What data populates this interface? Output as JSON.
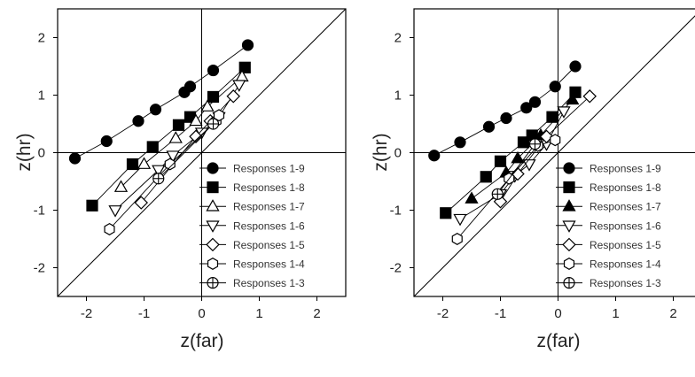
{
  "chart_data": [
    {
      "type": "scatter",
      "xlabel": "z(far)",
      "ylabel": "z(hr)",
      "xlim": [
        -2.5,
        2.5
      ],
      "ylim": [
        -2.5,
        2.5
      ],
      "xticks": [
        -2,
        -1,
        0,
        1,
        2
      ],
      "yticks": [
        -2,
        -1,
        0,
        1,
        2
      ],
      "reference_lines": [
        "x=0",
        "y=0",
        "y=x"
      ],
      "legend_position": "bottom-right",
      "series": [
        {
          "name": "Responses 1-9",
          "marker": "circle",
          "filled": true,
          "x": [
            -2.2,
            -1.65,
            -1.1,
            -0.8,
            -0.3,
            -0.2,
            0.2,
            0.8
          ],
          "y": [
            -0.1,
            0.2,
            0.55,
            0.75,
            1.05,
            1.15,
            1.43,
            1.87
          ]
        },
        {
          "name": "Responses 1-8",
          "marker": "square",
          "filled": true,
          "x": [
            -1.9,
            -1.2,
            -0.85,
            -0.4,
            -0.2,
            0.2,
            0.75
          ],
          "y": [
            -0.92,
            -0.2,
            0.1,
            0.48,
            0.62,
            0.97,
            1.48
          ]
        },
        {
          "name": "Responses 1-7",
          "marker": "triangle-up",
          "filled": false,
          "x": [
            -1.4,
            -1.0,
            -0.45,
            -0.1,
            0.1,
            0.7
          ],
          "y": [
            -0.6,
            -0.2,
            0.25,
            0.55,
            0.8,
            1.32
          ]
        },
        {
          "name": "Responses 1-6",
          "marker": "triangle-down",
          "filled": false,
          "x": [
            -1.5,
            -0.75,
            -0.5,
            0.0,
            0.3,
            0.65
          ],
          "y": [
            -1.0,
            -0.3,
            -0.05,
            0.35,
            0.62,
            1.18
          ]
        },
        {
          "name": "Responses 1-5",
          "marker": "diamond",
          "filled": false,
          "x": [
            -1.05,
            -0.1,
            0.15,
            0.55
          ],
          "y": [
            -0.87,
            0.28,
            0.55,
            0.98
          ]
        },
        {
          "name": "Responses 1-4",
          "marker": "hexagon",
          "filled": false,
          "x": [
            -1.6,
            -0.55,
            0.25,
            0.3
          ],
          "y": [
            -1.33,
            -0.2,
            0.55,
            0.65
          ]
        },
        {
          "name": "Responses 1-3",
          "marker": "circle-cross",
          "filled": false,
          "x": [
            -0.75,
            0.2
          ],
          "y": [
            -0.45,
            0.5
          ]
        }
      ]
    },
    {
      "type": "scatter",
      "xlabel": "z(far)",
      "ylabel": "z(hr)",
      "xlim": [
        -2.5,
        2.5
      ],
      "ylim": [
        -2.5,
        2.5
      ],
      "xticks": [
        -2,
        -1,
        0,
        1,
        2
      ],
      "yticks": [
        -2,
        -1,
        0,
        1,
        2
      ],
      "reference_lines": [
        "x=0",
        "y=0",
        "y=x"
      ],
      "legend_position": "bottom-right",
      "series": [
        {
          "name": "Responses 1-9",
          "marker": "circle",
          "filled": true,
          "x": [
            -2.15,
            -1.7,
            -1.2,
            -0.9,
            -0.55,
            -0.4,
            -0.05,
            0.3
          ],
          "y": [
            -0.05,
            0.18,
            0.45,
            0.6,
            0.78,
            0.88,
            1.15,
            1.5
          ]
        },
        {
          "name": "Responses 1-8",
          "marker": "square",
          "filled": true,
          "x": [
            -1.95,
            -1.25,
            -1.0,
            -0.6,
            -0.45,
            -0.1,
            0.3
          ],
          "y": [
            -1.05,
            -0.42,
            -0.15,
            0.18,
            0.3,
            0.62,
            1.05
          ]
        },
        {
          "name": "Responses 1-7",
          "marker": "triangle-up",
          "filled": true,
          "x": [
            -1.5,
            -0.9,
            -0.7,
            -0.3,
            0.25
          ],
          "y": [
            -0.8,
            -0.35,
            -0.1,
            0.3,
            0.92
          ]
        },
        {
          "name": "Responses 1-6",
          "marker": "triangle-down",
          "filled": false,
          "x": [
            -1.7,
            -1.0,
            -0.75,
            -0.5,
            -0.2,
            0.1
          ],
          "y": [
            -1.15,
            -0.72,
            -0.4,
            -0.2,
            0.15,
            0.72
          ]
        },
        {
          "name": "Responses 1-5",
          "marker": "diamond",
          "filled": false,
          "x": [
            -1.0,
            -0.7,
            -0.2,
            0.55
          ],
          "y": [
            -0.85,
            -0.37,
            0.28,
            0.98
          ]
        },
        {
          "name": "Responses 1-4",
          "marker": "hexagon",
          "filled": false,
          "x": [
            -1.75,
            -0.85,
            -0.35,
            -0.05
          ],
          "y": [
            -1.5,
            -0.45,
            0.12,
            0.22
          ]
        },
        {
          "name": "Responses 1-3",
          "marker": "circle-cross",
          "filled": false,
          "x": [
            -1.05,
            -0.4
          ],
          "y": [
            -0.72,
            0.15
          ]
        }
      ]
    }
  ]
}
